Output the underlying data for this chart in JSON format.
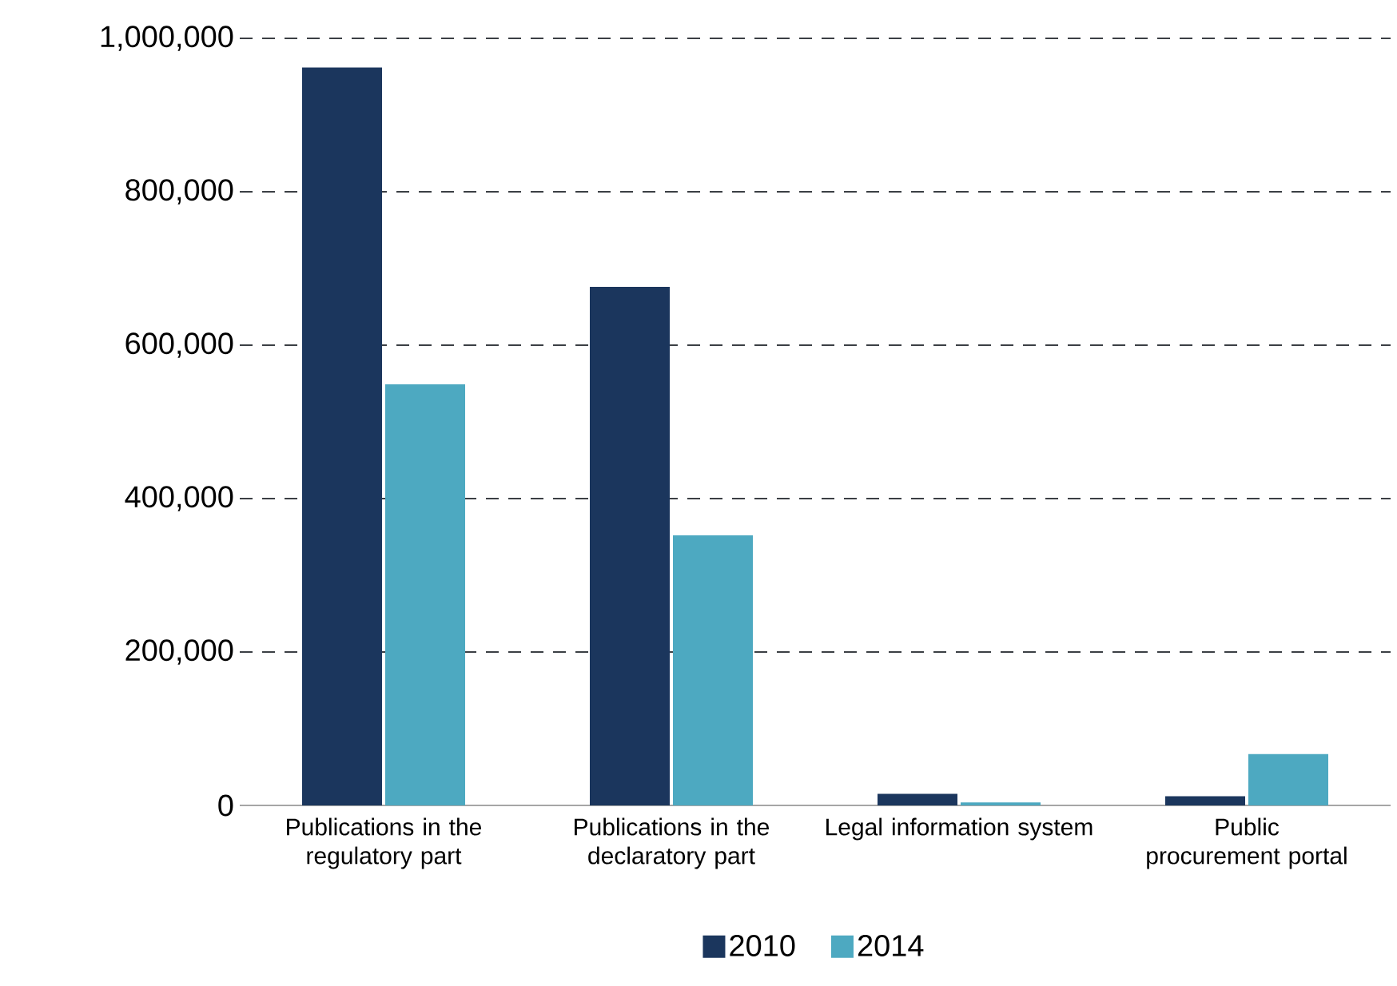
{
  "chart_data": {
    "type": "bar",
    "categories": [
      "Publications in the regulatory part",
      "Publications in the declaratory part",
      "Legal information system",
      "Public procurement portal"
    ],
    "series": [
      {
        "name": "2010",
        "color": "#1b365d",
        "values": [
          962000,
          676000,
          15000,
          12000
        ]
      },
      {
        "name": "2014",
        "color": "#4da9c1",
        "values": [
          549000,
          352000,
          4000,
          67000
        ]
      }
    ],
    "ylim": [
      0,
      1000000
    ],
    "yticks": [
      {
        "value": 0,
        "label": "0"
      },
      {
        "value": 200000,
        "label": "200,000"
      },
      {
        "value": 400000,
        "label": "400,000"
      },
      {
        "value": 600000,
        "label": "600,000"
      },
      {
        "value": 800000,
        "label": "800,000"
      },
      {
        "value": 1000000,
        "label": "1,000,000"
      }
    ],
    "grid": "y",
    "legend": "bottom"
  }
}
